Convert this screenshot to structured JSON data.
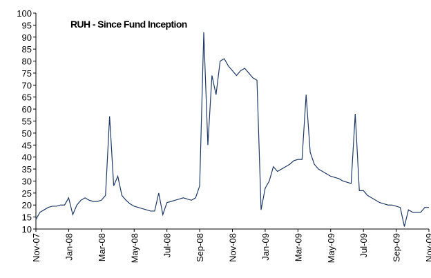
{
  "chart_data": {
    "type": "line",
    "title": "RUH - Since Fund Inception",
    "categories": [
      "Nov-07",
      null,
      null,
      null,
      null,
      null,
      null,
      null,
      "Jan-08",
      null,
      null,
      null,
      null,
      null,
      null,
      null,
      "Mar-08",
      null,
      null,
      null,
      null,
      null,
      null,
      null,
      "May-08",
      null,
      null,
      null,
      null,
      null,
      null,
      null,
      "Jul-08",
      null,
      null,
      null,
      null,
      null,
      null,
      null,
      "Sep-08",
      null,
      null,
      null,
      null,
      null,
      null,
      null,
      "Nov-08",
      null,
      null,
      null,
      null,
      null,
      null,
      null,
      "Jan-09",
      null,
      null,
      null,
      null,
      null,
      null,
      null,
      "Mar-09",
      null,
      null,
      null,
      null,
      null,
      null,
      null,
      "May-09",
      null,
      null,
      null,
      null,
      null,
      null,
      null,
      "Jul-09",
      null,
      null,
      null,
      null,
      null,
      null,
      null,
      "Sep-09",
      null,
      null,
      null,
      null,
      null,
      null,
      null,
      "Nov-09"
    ],
    "series": [
      {
        "name": "RUH",
        "color": "#1f3864",
        "values": [
          14,
          17,
          18,
          19,
          19.5,
          19.5,
          20,
          20,
          23,
          16,
          20,
          22,
          23,
          22,
          21.5,
          21.5,
          22,
          24,
          57,
          28,
          32,
          24,
          22,
          20.5,
          19.5,
          19,
          18.5,
          18,
          17.5,
          17.5,
          25,
          16,
          21,
          21.5,
          22,
          22.5,
          23,
          22.5,
          22,
          23,
          28,
          92,
          45,
          74,
          66,
          80,
          81,
          78,
          76,
          74,
          76,
          77,
          75,
          73,
          72,
          18,
          27,
          30,
          36,
          34,
          35,
          36,
          37,
          38.5,
          39,
          39,
          66,
          42,
          37,
          35,
          34,
          33,
          32,
          31.5,
          31,
          30,
          29.5,
          29,
          58,
          26,
          26,
          24,
          23,
          22,
          21,
          20.5,
          20,
          20,
          19.5,
          19,
          11,
          18,
          17,
          17,
          17,
          19,
          19
        ]
      }
    ],
    "ylim": [
      10,
      100
    ],
    "yticks": [
      10,
      15,
      20,
      25,
      30,
      35,
      40,
      45,
      50,
      55,
      60,
      65,
      70,
      75,
      80,
      85,
      90,
      95,
      100
    ]
  }
}
